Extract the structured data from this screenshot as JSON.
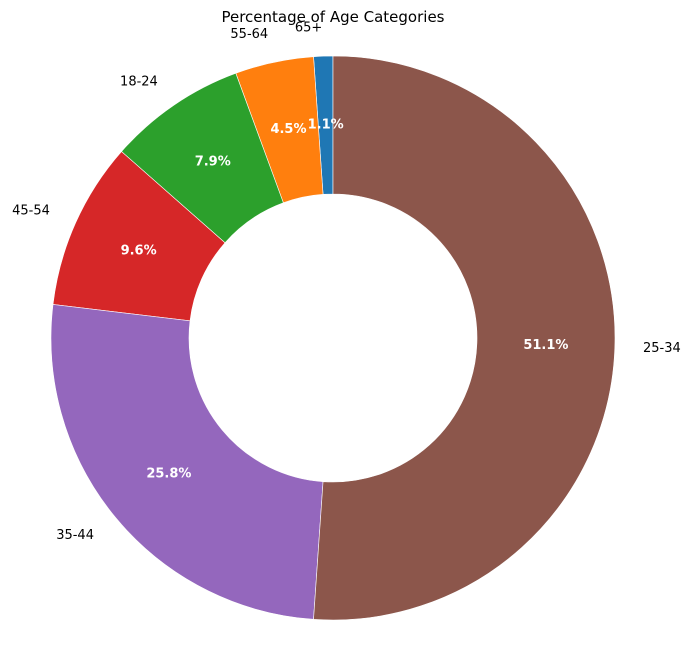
{
  "chart_data": {
    "type": "pie",
    "variant": "donut",
    "title": "Percentage of Age Categories",
    "start_angle_deg": 90,
    "direction": "counterclockwise",
    "slices": [
      {
        "label": "65+",
        "value": 1.1,
        "value_label": "1.1%",
        "color": "#1f77b4"
      },
      {
        "label": "55-64",
        "value": 4.5,
        "value_label": "4.5%",
        "color": "#ff7f0e"
      },
      {
        "label": "18-24",
        "value": 7.9,
        "value_label": "7.9%",
        "color": "#2ca02c"
      },
      {
        "label": "45-54",
        "value": 9.6,
        "value_label": "9.6%",
        "color": "#d62728"
      },
      {
        "label": "35-44",
        "value": 25.8,
        "value_label": "25.8%",
        "color": "#9467bd"
      },
      {
        "label": "25-34",
        "value": 51.1,
        "value_label": "51.1%",
        "color": "#8c564b"
      }
    ]
  }
}
